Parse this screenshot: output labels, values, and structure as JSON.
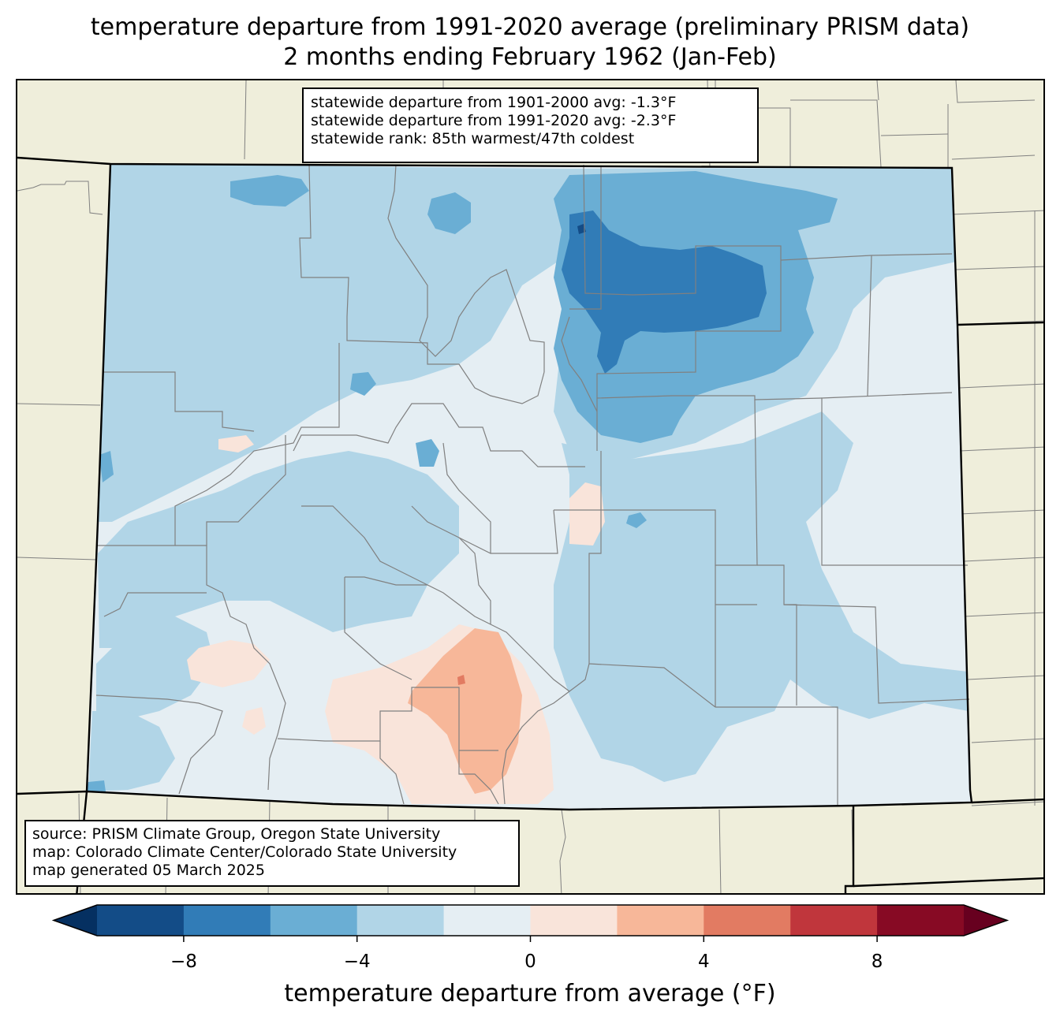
{
  "title": {
    "line1": "temperature departure from 1991-2020 average (preliminary PRISM data)",
    "line2": "2 months ending February 1962 (Jan-Feb)"
  },
  "stats": {
    "dep_1901_2000": "statewide departure from 1901-2000 avg: -1.3°F",
    "dep_1991_2020": "statewide departure from 1991-2020 avg: -2.3°F",
    "rank": "statewide rank: 85th warmest/47th coldest"
  },
  "source": {
    "line1": "source: PRISM Climate Group, Oregon State University",
    "line2": "map: Colorado Climate Center/Colorado State University",
    "line3": "map generated 05 March 2025"
  },
  "colorbar": {
    "label": "temperature departure from average (°F)",
    "min": -10,
    "max": 10,
    "step": 2,
    "extend": "both",
    "ticks": [
      -8,
      -4,
      0,
      4,
      8
    ],
    "tick_labels": [
      "−8",
      "−4",
      "0",
      "4",
      "8"
    ],
    "colors": [
      "#053061",
      "#134c87",
      "#317cb7",
      "#6aaed4",
      "#b1d5e7",
      "#e5eef3",
      "#f9e4da",
      "#f7b799",
      "#e27b62",
      "#c0363c",
      "#870a24",
      "#67001f"
    ]
  },
  "map_colors": {
    "background": "#efeedb",
    "state_border": "#000000",
    "county_border": "#808080"
  }
}
